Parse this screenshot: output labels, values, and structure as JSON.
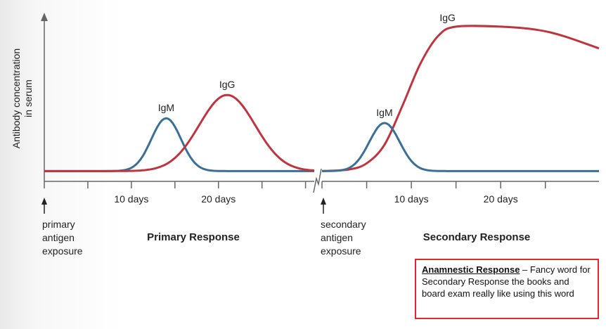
{
  "chart_data": {
    "type": "line",
    "title": "",
    "ylabel_lines": [
      "Antibody concentration",
      "in serum"
    ],
    "panels": [
      {
        "name": "primary",
        "title": "Primary Response",
        "event_label_lines": [
          "primary",
          "antigen",
          "exposure"
        ],
        "tick_labels": [
          {
            "day": 10,
            "label": "10 days"
          },
          {
            "day": 20,
            "label": "20 days"
          }
        ],
        "minor_ticks_days": [
          0,
          5,
          10,
          15,
          20,
          25,
          30
        ],
        "x_range_days": [
          0,
          31
        ],
        "series": [
          {
            "name": "IgM",
            "color": "#3a6f96",
            "peak_day": 14,
            "peak_value": 0.37,
            "width_days": 1.7,
            "baseline": 0.03
          },
          {
            "name": "IgG",
            "color": "#c0343f",
            "peak_day": 21,
            "peak_value": 0.52,
            "width_days": 3.2,
            "baseline": 0.03
          }
        ]
      },
      {
        "name": "secondary",
        "title": "Secondary Response",
        "event_label_lines": [
          "secondary",
          "antigen",
          "exposure"
        ],
        "tick_labels": [
          {
            "day": 10,
            "label": "10 days"
          },
          {
            "day": 20,
            "label": "20 days"
          }
        ],
        "minor_ticks_days": [
          0,
          5,
          10,
          15,
          20,
          25
        ],
        "x_range_days": [
          0,
          31
        ],
        "series": [
          {
            "name": "IgM",
            "color": "#3a6f96",
            "peak_day": 7,
            "peak_value": 0.34,
            "width_days": 1.7,
            "baseline": 0.03
          },
          {
            "name": "IgG",
            "color": "#c0343f",
            "shape": "sigmoid-plateau",
            "values": [
              [
                0,
                0.03
              ],
              [
                3,
                0.04
              ],
              [
                5,
                0.08
              ],
              [
                7,
                0.2
              ],
              [
                9,
                0.45
              ],
              [
                11,
                0.72
              ],
              [
                13,
                0.9
              ],
              [
                15,
                0.96
              ],
              [
                20,
                0.96
              ],
              [
                24,
                0.94
              ],
              [
                27,
                0.9
              ],
              [
                31,
                0.82
              ]
            ]
          }
        ]
      }
    ],
    "ylim": [
      0,
      1.05
    ],
    "grid": false,
    "legend": "none"
  },
  "note": {
    "term": "Anamnestic Response",
    "text": " – Fancy word for Secondary Response the books and board exam really like using this word"
  },
  "colors": {
    "igm": "#3a6f96",
    "igg": "#c0343f",
    "axis": "#666666",
    "note_border": "#e0292e"
  }
}
